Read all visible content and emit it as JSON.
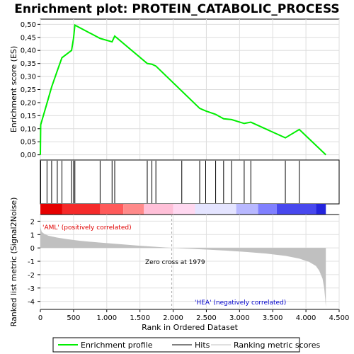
{
  "chart_data": {
    "type": "line",
    "title": "Enrichment plot: PROTEIN_CATABOLIC_PROCESS",
    "xlabel": "Rank in Ordered Dataset",
    "ylabel_top": "Enrichment score (ES)",
    "ylabel_bottom": "Ranked list metric (Signal2Noise)",
    "xlim": [
      0,
      4500
    ],
    "x_ticks": [
      0,
      500,
      1000,
      1500,
      2000,
      2500,
      3000,
      3500,
      4000,
      4500
    ],
    "x_tick_labels": [
      "0",
      "500",
      "1.000",
      "1.500",
      "2.000",
      "2.500",
      "3.000",
      "3.500",
      "4.000",
      "4.500"
    ],
    "es_ylim": [
      -0.02,
      0.52
    ],
    "es_ticks": [
      0.0,
      0.05,
      0.1,
      0.15,
      0.2,
      0.25,
      0.3,
      0.35,
      0.4,
      0.45,
      0.5
    ],
    "es_tick_labels": [
      "0,00",
      "0,05",
      "0,10",
      "0,15",
      "0,20",
      "0,25",
      "0,30",
      "0,35",
      "0,40",
      "0,45",
      "0,50"
    ],
    "metric_ylim": [
      -4.6,
      2.5
    ],
    "metric_ticks": [
      2,
      1,
      0,
      -1,
      -2,
      -3,
      -4
    ],
    "metric_tick_labels": [
      "2",
      "1",
      "0",
      "-1",
      "-2",
      "-3",
      "-4"
    ],
    "enrichment_profile": {
      "x": [
        0,
        5,
        100,
        170,
        255,
        325,
        470,
        500,
        520,
        900,
        1080,
        1120,
        1610,
        1680,
        1740,
        2400,
        2490,
        2640,
        2760,
        2880,
        3070,
        3170,
        3690,
        3900,
        4300
      ],
      "y": [
        0.0,
        0.115,
        0.198,
        0.26,
        0.322,
        0.372,
        0.4,
        0.447,
        0.497,
        0.446,
        0.433,
        0.455,
        0.35,
        0.347,
        0.34,
        0.178,
        0.168,
        0.155,
        0.138,
        0.135,
        0.12,
        0.125,
        0.065,
        0.097,
        0.0
      ]
    },
    "hits": [
      5,
      100,
      170,
      255,
      325,
      470,
      500,
      520,
      900,
      1080,
      1120,
      1610,
      1680,
      1740,
      2130,
      2400,
      2490,
      2640,
      2760,
      2880,
      3070,
      3170,
      3690,
      3900
    ],
    "ranked_metric_profile": {
      "x": [
        0,
        20,
        60,
        120,
        250,
        400,
        600,
        900,
        1200,
        1500,
        1800,
        1979,
        2200,
        2500,
        2800,
        3100,
        3400,
        3700,
        3900,
        4050,
        4150,
        4200,
        4250,
        4275,
        4290,
        4300
      ],
      "y": [
        1.6,
        1.2,
        1.05,
        0.92,
        0.78,
        0.66,
        0.53,
        0.4,
        0.28,
        0.16,
        0.06,
        0.0,
        -0.05,
        -0.12,
        -0.2,
        -0.3,
        -0.42,
        -0.6,
        -0.8,
        -1.05,
        -1.35,
        -1.7,
        -2.3,
        -3.0,
        -3.8,
        -4.45
      ]
    },
    "zero_cross_rank": 1979,
    "zero_cross_text": "Zero cross at 1979",
    "positive_label": "'AML' (positively correlated)",
    "negative_label": "'HEA' (negatively correlated)",
    "heatmap_colors": [
      "#e60000",
      "#f52a2a",
      "#ff5a5a",
      "#ff8a8a",
      "#ffc0d8",
      "#ffd8f0",
      "#e4e4ff",
      "#b8b8ff",
      "#8080ff",
      "#4848ee",
      "#2424dd"
    ],
    "heatmap_bounds": [
      0,
      330,
      900,
      1250,
      1560,
      2000,
      2330,
      2950,
      3280,
      3560,
      4150,
      4300
    ],
    "legend": {
      "enrichment": "Enrichment profile",
      "hits": "Hits",
      "metric": "Ranking metric scores"
    },
    "colors": {
      "profile": "#00ee00",
      "hits": "#000000",
      "metric_fill": "#c0c0c0",
      "positive_text": "#e00000",
      "negative_text": "#0000cc",
      "zero_line": "#aaaaaa"
    }
  }
}
